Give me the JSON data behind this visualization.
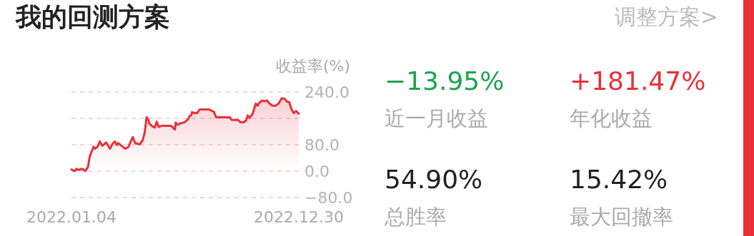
{
  "chart_data": [
    {
      "type": "area",
      "title": "我的回测方案",
      "ylabel": "收益率(%)",
      "x": [
        "2022-01-04",
        "2022-01-09",
        "2022-01-12",
        "2022-01-15",
        "2022-01-19",
        "2022-01-23",
        "2022-01-26",
        "2022-01-30",
        "2022-02-02",
        "2022-02-08",
        "2022-02-10",
        "2022-02-14",
        "2022-02-18",
        "2022-02-22",
        "2022-02-28",
        "2022-03-06",
        "2022-03-10",
        "2022-03-14",
        "2022-03-17",
        "2022-03-19",
        "2022-03-30",
        "2022-04-04",
        "2022-04-08",
        "2022-04-11",
        "2022-04-15",
        "2022-04-22",
        "2022-04-27",
        "2022-04-30",
        "2022-05-03",
        "2022-05-06",
        "2022-05-07",
        "2022-05-12",
        "2022-05-16",
        "2022-05-19",
        "2022-05-22",
        "2022-05-28",
        "2022-06-01",
        "2022-06-11",
        "2022-06-14",
        "2022-06-17",
        "2022-06-18",
        "2022-06-21",
        "2022-06-26",
        "2022-07-02",
        "2022-07-08",
        "2022-07-10",
        "2022-07-13",
        "2022-07-14",
        "2022-07-17",
        "2022-07-22",
        "2022-07-26",
        "2022-08-10",
        "2022-08-18",
        "2022-08-21",
        "2022-09-12",
        "2022-09-15",
        "2022-09-25",
        "2022-09-29",
        "2022-10-04",
        "2022-10-08",
        "2022-10-10",
        "2022-10-13",
        "2022-10-18",
        "2022-10-23",
        "2022-10-26",
        "2022-10-28",
        "2022-11-02",
        "2022-11-06",
        "2022-11-10",
        "2022-11-13",
        "2022-11-18",
        "2022-11-23",
        "2022-11-28",
        "2022-12-03",
        "2022-12-08",
        "2022-12-11",
        "2022-12-15",
        "2022-12-18",
        "2022-12-22",
        "2022-12-26",
        "2022-12-30"
      ],
      "series": [
        {
          "color": "#e8303a",
          "values": [
            5,
            0,
            7,
            3,
            7,
            5,
            0,
            12,
            45,
            74,
            68,
            73,
            90,
            77,
            87,
            68,
            83,
            90,
            79,
            85,
            68,
            73,
            90,
            103,
            85,
            81,
            94,
            118,
            163,
            155,
            145,
            136,
            132,
            150,
            134,
            138,
            137,
            137,
            131,
            126,
            147,
            141,
            145,
            148,
            158,
            167,
            170,
            179,
            176,
            176,
            187,
            187,
            179,
            163,
            163,
            155,
            155,
            148,
            148,
            155,
            169,
            161,
            174,
            205,
            198,
            206,
            214,
            212,
            214,
            206,
            199,
            198,
            205,
            221,
            219,
            211,
            209,
            190,
            176,
            182,
            174
          ]
        }
      ],
      "xlim": [
        "2022-01-04",
        "2022-12-30"
      ],
      "xticks": [
        {
          "value": "2022-01-04",
          "label": "2022.01.04"
        },
        {
          "value": "2022-12-30",
          "label": "2022.12.30"
        }
      ],
      "ylim": [
        -80,
        240
      ],
      "yticks": [
        {
          "value": -80,
          "label": "−80.0"
        },
        {
          "value": 0,
          "label": "0.0"
        },
        {
          "value": 80,
          "label": "80.0"
        },
        {
          "value": 160,
          "label": null
        },
        {
          "value": 240,
          "label": "240.0"
        }
      ],
      "grid": "y"
    },
    {
      "type": "other",
      "annotations": [
        "调整方案>",
        "−13.95%",
        "近一月收益",
        "+181.47%",
        "年化收益",
        "54.90%",
        "总胜率",
        "15.42%",
        "最大回撤率"
      ],
      "colors": [
        "#1aa44f",
        "#e8303a",
        "#222222",
        "#222222"
      ]
    }
  ]
}
